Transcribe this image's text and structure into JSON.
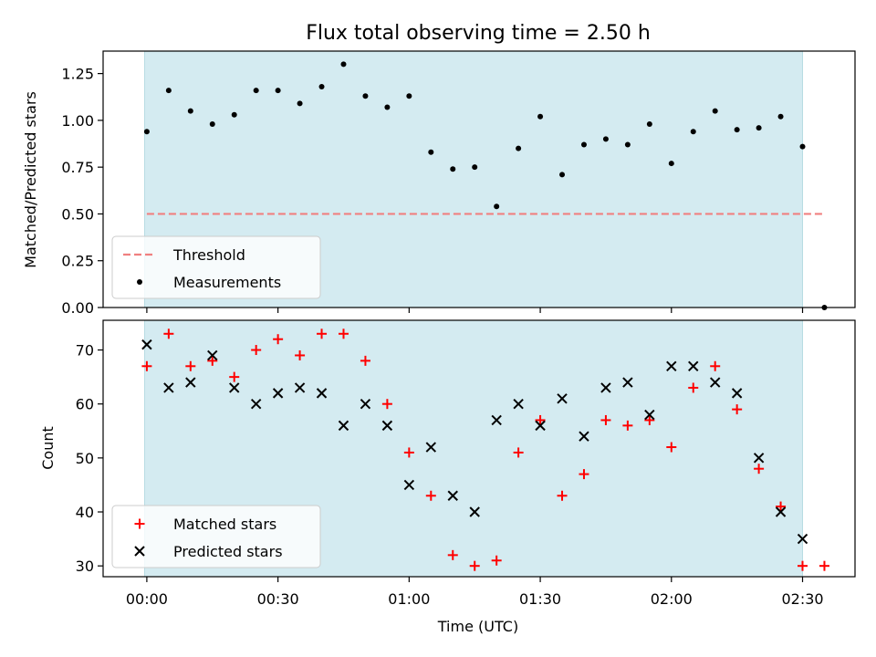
{
  "chart_data": [
    {
      "type": "scatter",
      "title": "Flux total observing time = 2.50 h",
      "xlabel": "",
      "ylabel": "Matched/Predicted stars",
      "xlim_minutes": [
        -10,
        162
      ],
      "ylim": [
        0,
        1.37
      ],
      "yticks": [
        "0.00",
        "0.25",
        "0.50",
        "0.75",
        "1.00",
        "1.25"
      ],
      "yticks_values": [
        0,
        0.25,
        0.5,
        0.75,
        1.0,
        1.25
      ],
      "shade_range_minutes": [
        -0.5,
        150
      ],
      "shade_color": "#d4ebf1",
      "threshold": {
        "label": "Threshold",
        "value": 0.5,
        "x_range_minutes": [
          0,
          155
        ],
        "color": "#f08080"
      },
      "series": [
        {
          "name": "Measurements",
          "color": "#000000",
          "x_minutes": [
            0,
            5,
            10,
            15,
            20,
            25,
            30,
            35,
            40,
            45,
            50,
            55,
            60,
            65,
            70,
            75,
            80,
            85,
            90,
            95,
            100,
            105,
            110,
            115,
            120,
            125,
            130,
            135,
            140,
            145,
            150,
            155
          ],
          "values": [
            0.94,
            1.16,
            1.05,
            0.98,
            1.03,
            1.16,
            1.16,
            1.09,
            1.18,
            1.3,
            1.13,
            1.07,
            1.13,
            0.83,
            0.74,
            0.75,
            0.54,
            0.85,
            1.02,
            0.71,
            0.87,
            0.9,
            0.87,
            0.98,
            0.77,
            0.94,
            1.05,
            0.95,
            0.96,
            1.02,
            0.86,
            0.0
          ]
        }
      ],
      "legend": {
        "placement": "lower-left",
        "entries": [
          "Threshold",
          "Measurements"
        ]
      }
    },
    {
      "type": "scatter",
      "title": "",
      "xlabel": "Time (UTC)",
      "ylabel": "Count",
      "xlim_minutes": [
        -10,
        162
      ],
      "ylim": [
        28,
        75.5
      ],
      "yticks": [
        "30",
        "40",
        "50",
        "60",
        "70"
      ],
      "yticks_values": [
        30,
        40,
        50,
        60,
        70
      ],
      "xticks": [
        "00:00",
        "00:30",
        "01:00",
        "01:30",
        "02:00",
        "02:30"
      ],
      "xticks_minutes": [
        0,
        30,
        60,
        90,
        120,
        150
      ],
      "shade_range_minutes": [
        -0.5,
        150
      ],
      "shade_color": "#d4ebf1",
      "series": [
        {
          "name": "Matched stars",
          "marker": "plus",
          "color": "#ff0000",
          "x_minutes": [
            0,
            5,
            10,
            15,
            20,
            25,
            30,
            35,
            40,
            45,
            50,
            55,
            60,
            65,
            70,
            75,
            80,
            85,
            90,
            95,
            100,
            105,
            110,
            115,
            120,
            125,
            130,
            135,
            140,
            145,
            150,
            155
          ],
          "values": [
            67,
            73,
            67,
            68,
            65,
            70,
            72,
            69,
            73,
            73,
            68,
            60,
            51,
            43,
            32,
            30,
            31,
            51,
            57,
            43,
            47,
            57,
            56,
            57,
            52,
            63,
            67,
            59,
            48,
            41,
            30,
            30
          ]
        },
        {
          "name": "Predicted stars",
          "marker": "x",
          "color": "#000000",
          "x_minutes": [
            0,
            5,
            10,
            15,
            20,
            25,
            30,
            35,
            40,
            45,
            50,
            55,
            60,
            65,
            70,
            75,
            80,
            85,
            90,
            95,
            100,
            105,
            110,
            115,
            120,
            125,
            130,
            135,
            140,
            145,
            150
          ],
          "values": [
            71,
            63,
            64,
            69,
            63,
            60,
            62,
            63,
            62,
            56,
            60,
            56,
            45,
            52,
            43,
            40,
            57,
            60,
            56,
            61,
            54,
            63,
            64,
            58,
            67,
            67,
            64,
            62,
            50,
            40,
            35
          ]
        }
      ],
      "legend": {
        "placement": "lower-left",
        "entries": [
          "Matched stars",
          "Predicted stars"
        ]
      }
    }
  ]
}
